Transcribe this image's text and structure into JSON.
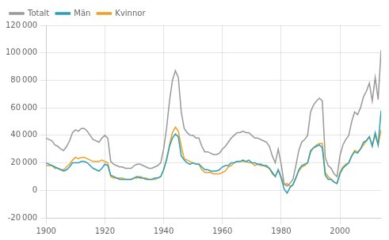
{
  "chart_data": {
    "type": "line",
    "x": [
      1900,
      1901,
      1902,
      1903,
      1904,
      1905,
      1906,
      1907,
      1908,
      1909,
      1910,
      1911,
      1912,
      1913,
      1914,
      1915,
      1916,
      1917,
      1918,
      1919,
      1920,
      1921,
      1922,
      1923,
      1924,
      1925,
      1926,
      1927,
      1928,
      1929,
      1930,
      1931,
      1932,
      1933,
      1934,
      1935,
      1936,
      1937,
      1938,
      1939,
      1940,
      1941,
      1942,
      1943,
      1944,
      1945,
      1946,
      1947,
      1948,
      1949,
      1950,
      1951,
      1952,
      1953,
      1954,
      1955,
      1956,
      1957,
      1958,
      1959,
      1960,
      1961,
      1962,
      1963,
      1964,
      1965,
      1966,
      1967,
      1968,
      1969,
      1970,
      1971,
      1972,
      1973,
      1974,
      1975,
      1976,
      1977,
      1978,
      1979,
      1980,
      1981,
      1982,
      1983,
      1984,
      1985,
      1986,
      1987,
      1988,
      1989,
      1990,
      1991,
      1992,
      1993,
      1994,
      1995,
      1996,
      1997,
      1998,
      1999,
      2000,
      2001,
      2002,
      2003,
      2004,
      2005,
      2006,
      2007,
      2008,
      2009,
      2010,
      2011,
      2012,
      2013,
      2014
    ],
    "series": [
      {
        "name": "Totalt",
        "color": "#999999",
        "values": [
          38000,
          37000,
          36000,
          33000,
          32000,
          30000,
          29000,
          32000,
          36000,
          42000,
          44000,
          43000,
          45000,
          45000,
          43000,
          40000,
          37000,
          36000,
          35000,
          38000,
          40000,
          38000,
          21000,
          19000,
          18000,
          17000,
          17000,
          16000,
          16000,
          16000,
          18000,
          19000,
          19000,
          18000,
          17000,
          16000,
          16000,
          17000,
          18000,
          20000,
          30000,
          45000,
          65000,
          80000,
          87000,
          82000,
          57000,
          45000,
          42000,
          40000,
          40000,
          38000,
          38000,
          32000,
          28000,
          28000,
          27000,
          26000,
          26000,
          27000,
          30000,
          32000,
          35000,
          38000,
          40000,
          42000,
          42000,
          43000,
          42000,
          42000,
          40000,
          38000,
          38000,
          37000,
          36000,
          35000,
          32000,
          25000,
          20000,
          30000,
          19000,
          5000,
          3000,
          5000,
          8000,
          18000,
          29000,
          35000,
          37000,
          40000,
          57000,
          62000,
          65000,
          67000,
          65000,
          24000,
          18000,
          16000,
          12000,
          10000,
          25000,
          33000,
          37000,
          40000,
          50000,
          57000,
          55000,
          60000,
          68000,
          72000,
          78000,
          65000,
          82000,
          66000,
          102000
        ]
      },
      {
        "name": "Män",
        "color": "#2a9fbc",
        "values": [
          20000,
          19000,
          18000,
          17000,
          16000,
          15000,
          14000,
          15000,
          17000,
          20000,
          20000,
          20000,
          21000,
          21000,
          20000,
          18000,
          16000,
          15000,
          14000,
          16000,
          19000,
          18000,
          11000,
          10000,
          9000,
          8000,
          8000,
          8000,
          8000,
          8000,
          9000,
          10000,
          9000,
          9000,
          8000,
          8000,
          8000,
          9000,
          9000,
          10000,
          15000,
          22000,
          32000,
          38000,
          41000,
          39000,
          25000,
          22000,
          20000,
          19000,
          20000,
          19000,
          19000,
          17000,
          15000,
          15000,
          14000,
          14000,
          14000,
          15000,
          17000,
          18000,
          18000,
          20000,
          20000,
          21000,
          21000,
          22000,
          21000,
          22000,
          20000,
          20000,
          19000,
          19000,
          18000,
          18000,
          16000,
          13000,
          10000,
          15000,
          9000,
          1000,
          -2000,
          2000,
          4000,
          9000,
          15000,
          18000,
          19000,
          20000,
          28000,
          31000,
          32000,
          33000,
          31000,
          11000,
          8000,
          8000,
          6000,
          5000,
          12000,
          16000,
          18000,
          20000,
          25000,
          28000,
          27000,
          30000,
          35000,
          36000,
          39000,
          32000,
          42000,
          33000,
          58000
        ]
      },
      {
        "name": "Kvinnor",
        "color": "#f0a020",
        "values": [
          18000,
          18000,
          18000,
          16000,
          16000,
          15000,
          15000,
          17000,
          19000,
          22000,
          24000,
          23000,
          24000,
          24000,
          23000,
          22000,
          21000,
          21000,
          21000,
          22000,
          21000,
          20000,
          10000,
          9000,
          9000,
          9000,
          9000,
          8000,
          8000,
          8000,
          9000,
          9000,
          10000,
          9000,
          9000,
          8000,
          8000,
          8000,
          9000,
          10000,
          15000,
          23000,
          33000,
          42000,
          46000,
          43000,
          32000,
          23000,
          22000,
          21000,
          20000,
          19000,
          19000,
          15000,
          13000,
          13000,
          13000,
          12000,
          12000,
          12000,
          13000,
          14000,
          17000,
          18000,
          20000,
          21000,
          21000,
          21000,
          21000,
          20000,
          20000,
          18000,
          19000,
          18000,
          18000,
          17000,
          16000,
          12000,
          10000,
          15000,
          10000,
          4000,
          5000,
          3000,
          4000,
          9000,
          14000,
          17000,
          18000,
          20000,
          29000,
          31000,
          33000,
          34000,
          34000,
          13000,
          10000,
          8000,
          6000,
          5000,
          13000,
          17000,
          19000,
          20000,
          25000,
          29000,
          28000,
          30000,
          33000,
          36000,
          39000,
          33000,
          40000,
          33000,
          44000
        ]
      }
    ],
    "xlim": [
      1900,
      2014
    ],
    "xticks": [
      1900,
      1920,
      1940,
      1960,
      1980,
      2000
    ],
    "ylim": [
      -20000,
      120000
    ],
    "yticks": [
      {
        "value": -20000,
        "label": "-20 000"
      },
      0,
      {
        "value": 20000,
        "label": "20 000"
      },
      {
        "value": 40000,
        "label": "40 000"
      },
      {
        "value": 60000,
        "label": "60 000"
      },
      {
        "value": 80000,
        "label": "80 000"
      },
      {
        "value": 100000,
        "label": "100 000"
      },
      {
        "value": 120000,
        "label": "120 000"
      }
    ],
    "grid": true,
    "legend": "upper left"
  }
}
